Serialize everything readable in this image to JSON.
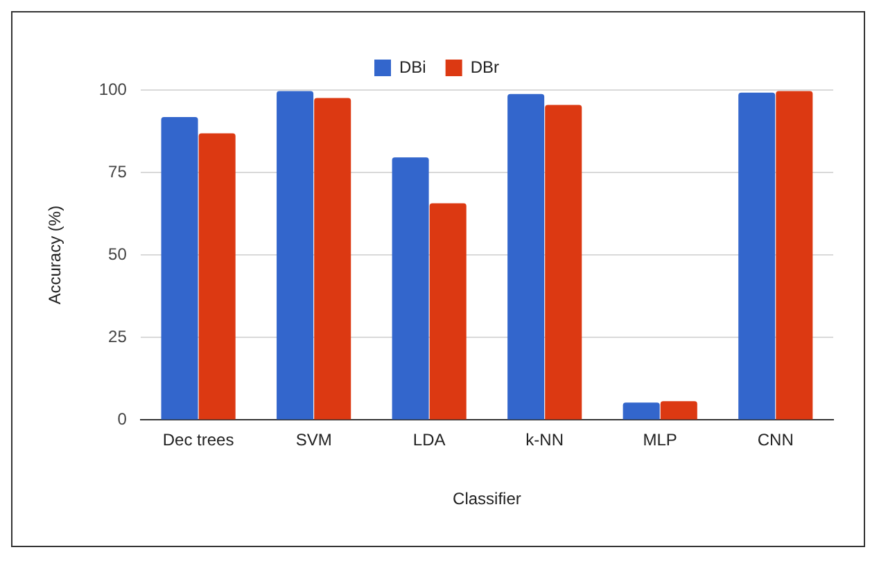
{
  "chart_data": {
    "type": "bar",
    "xlabel": "Classifier",
    "ylabel": "Accuracy (%)",
    "categories": [
      "Dec trees",
      "SVM",
      "LDA",
      "k-NN",
      "MLP",
      "CNN"
    ],
    "series": [
      {
        "name": "DBi",
        "color": "#3366cc",
        "values": [
          91.8,
          99.7,
          79.6,
          98.8,
          5.3,
          99.2
        ]
      },
      {
        "name": "DBr",
        "color": "#dc3912",
        "values": [
          86.9,
          97.6,
          65.7,
          95.5,
          5.7,
          99.7
        ]
      }
    ],
    "ylim": [
      0,
      100
    ],
    "yticks": [
      0,
      25,
      50,
      75,
      100
    ],
    "grid": "y",
    "legend": "top"
  }
}
